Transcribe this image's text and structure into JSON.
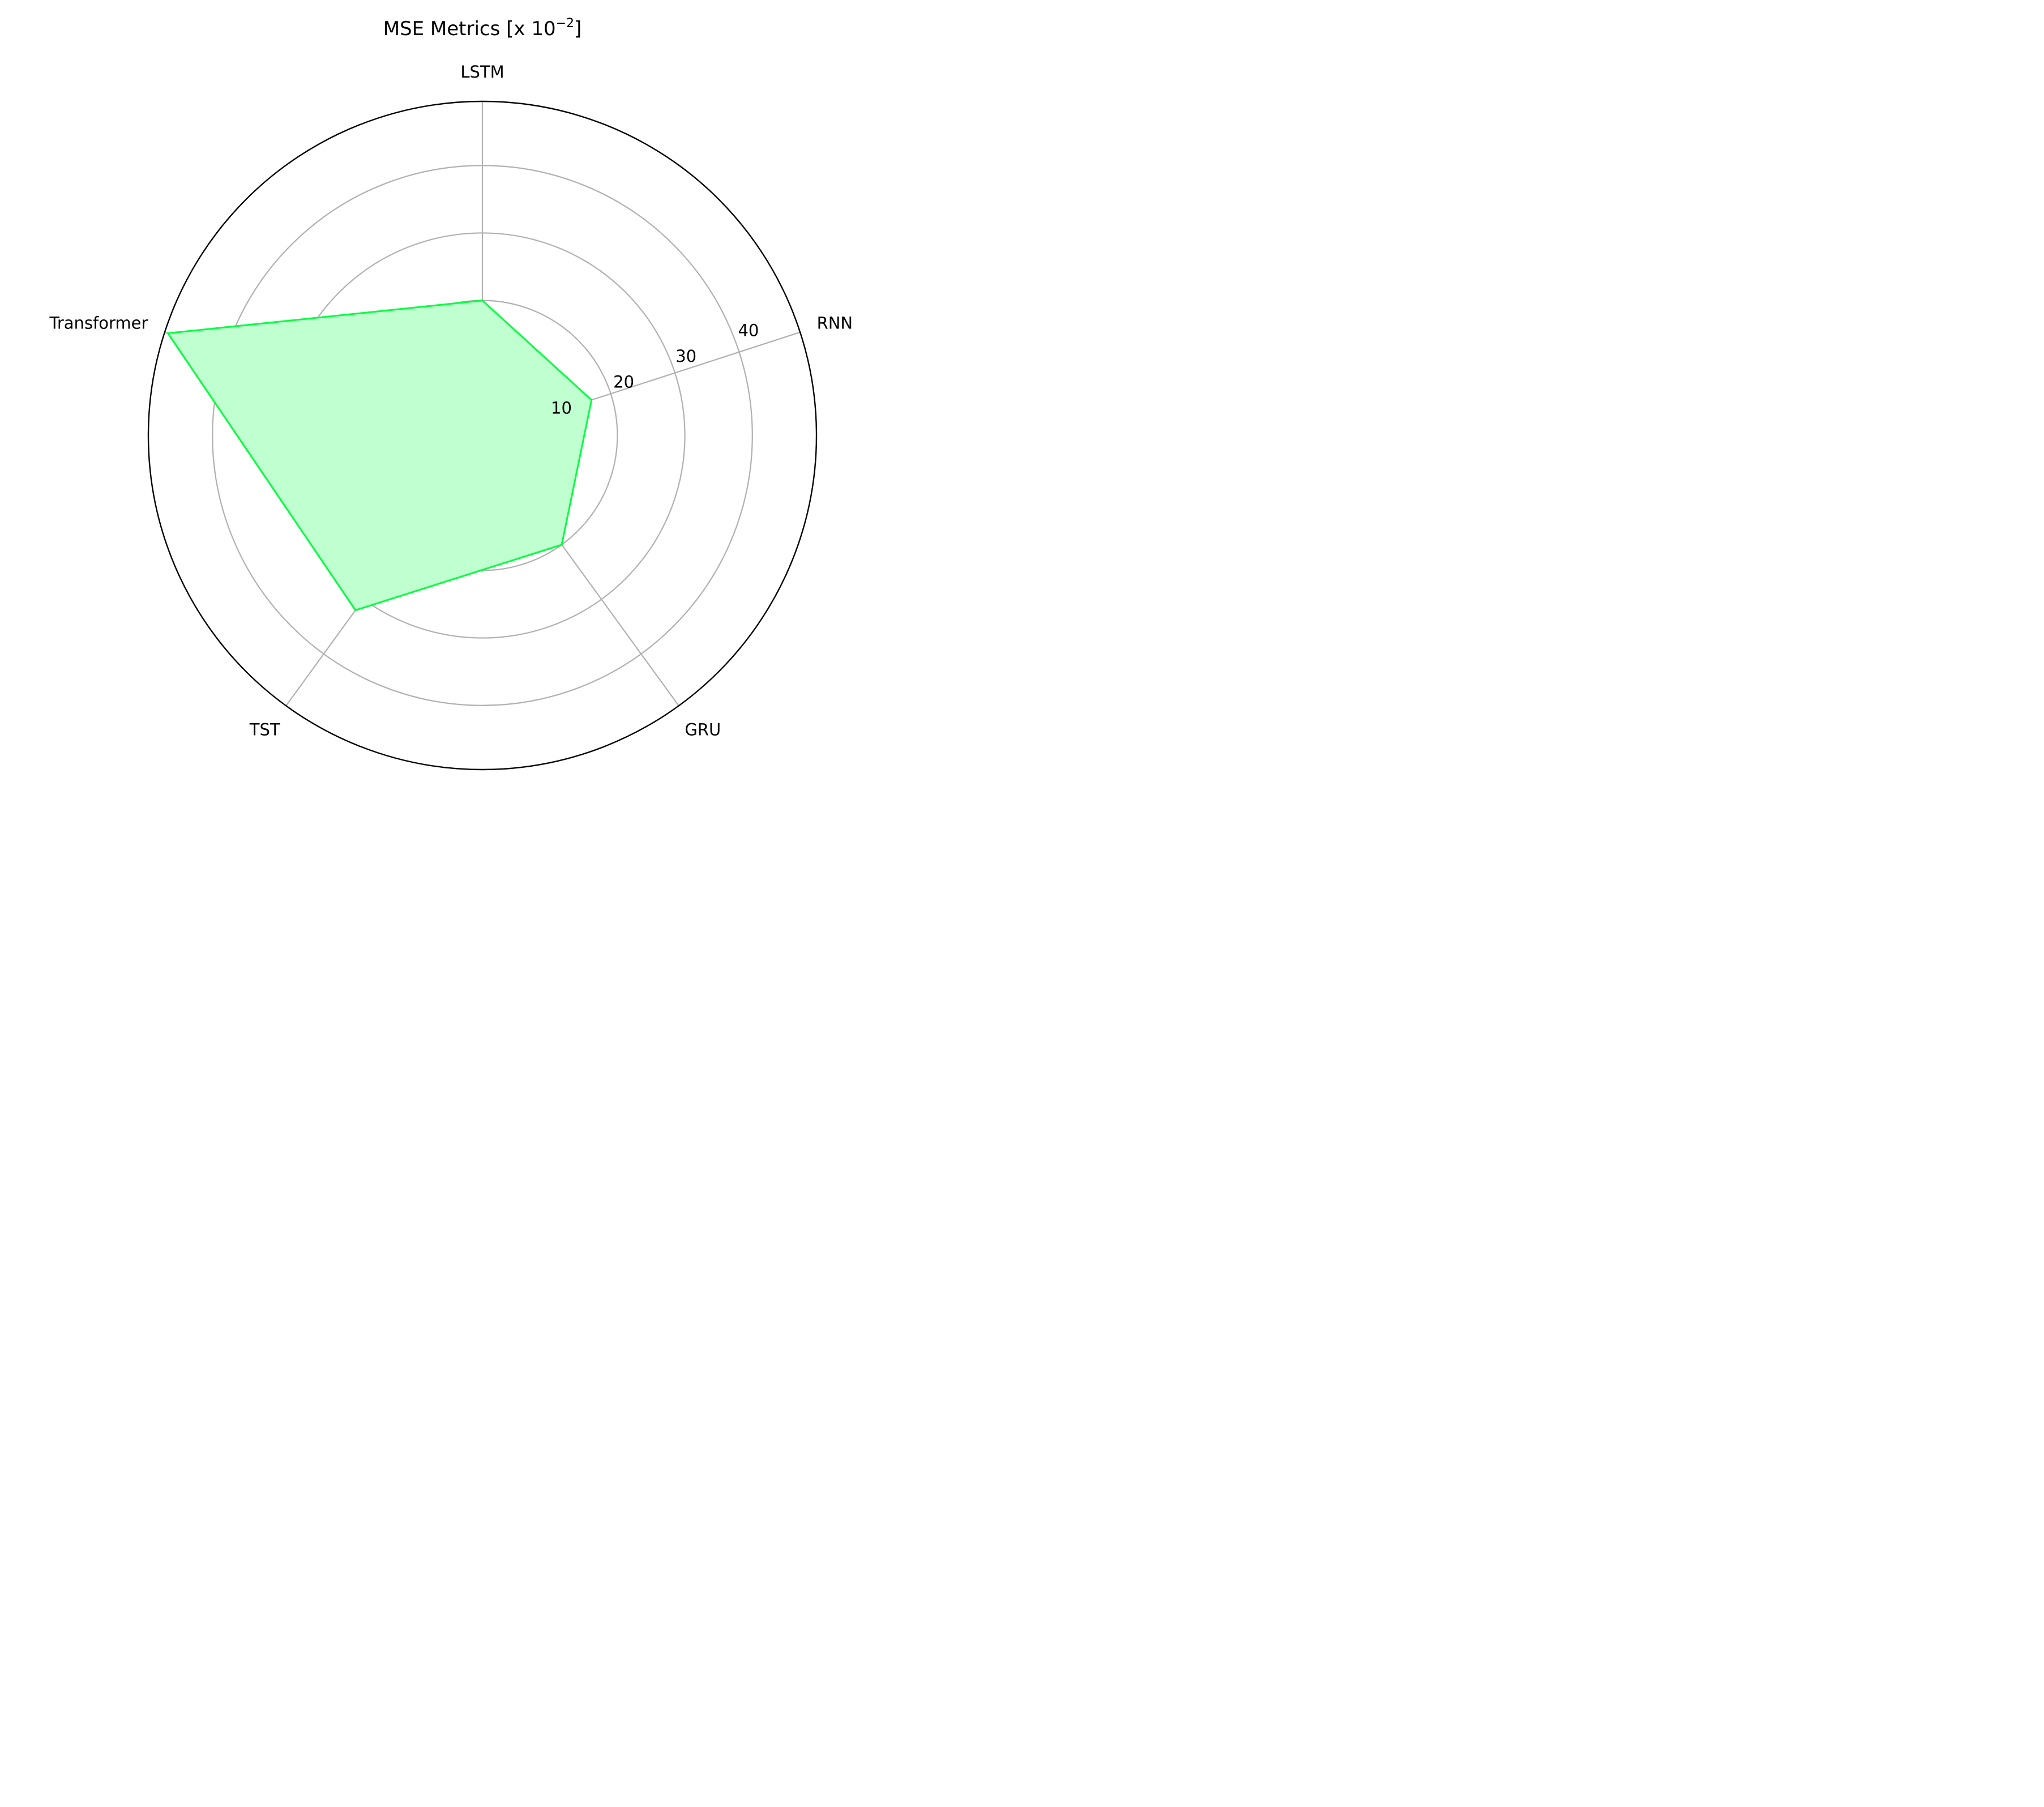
{
  "chart_data": {
    "type": "radar",
    "title_main": "MSE Metrics  [x 10",
    "title_exp": "−2",
    "title_end": "]",
    "categories": [
      "LSTM",
      "RNN",
      "GRU",
      "TST",
      "Transformer"
    ],
    "series": [
      {
        "values": [
          20,
          17,
          20,
          32,
          49
        ]
      }
    ],
    "rmax": 49.5,
    "rticks": [
      10,
      20,
      30,
      40
    ],
    "grid": true,
    "colors": {
      "line": "#00ff3c",
      "fill": "#bfffd0",
      "grid": "#b0b0b0",
      "frame": "#000000"
    }
  }
}
